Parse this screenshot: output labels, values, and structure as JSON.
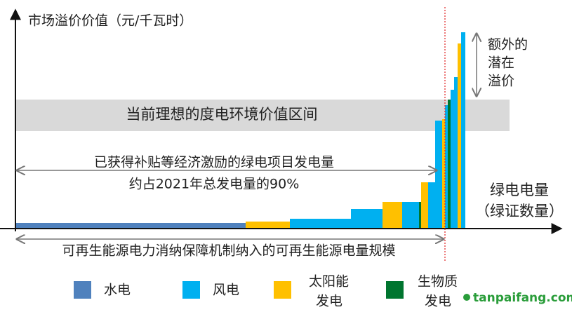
{
  "axis": {
    "y_title": "市场溢价价值（元/千瓦时）",
    "x_title": [
      "绿电电量",
      "（绿证数量）"
    ]
  },
  "band_label": "当前理想的度电环境价值区间",
  "subsidy_note": [
    "已获得补贴等经济激励的绿电项目发电量",
    "约占2021年总发电量的90%"
  ],
  "premium_note": [
    "额外的",
    "潜在",
    "溢价"
  ],
  "scope_note": "可再生能源电力消纳保障机制纳入的可再生能源电量规模",
  "legend": [
    {
      "label": [
        "水电"
      ]
    },
    {
      "label": [
        "风电"
      ]
    },
    {
      "label": [
        "太阳能",
        "发电"
      ]
    },
    {
      "label": [
        "生物质",
        "发电"
      ]
    }
  ],
  "watermark": "tanpaifang.com"
}
